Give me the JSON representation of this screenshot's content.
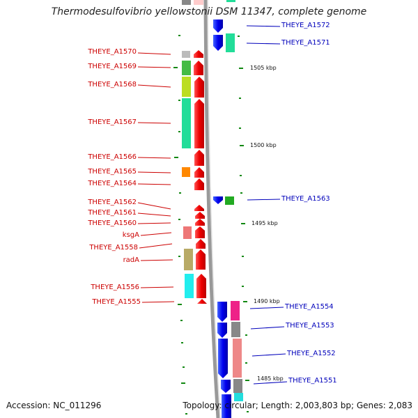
{
  "title": "Thermodesulfovibrio yellowstonii DSM 11347, complete genome",
  "footer": {
    "accession": "Accession: NC_011296",
    "topology": "Topology: circular; Length: 2,003,803 bp; Genes: 2,083"
  },
  "kbp_ticks": [
    "1505 kbp",
    "1500 kbp",
    "1495 kbp",
    "1490 kbp",
    "1485 kbp"
  ],
  "left_genes": [
    {
      "label": "THEYE_A1570"
    },
    {
      "label": "THEYE_A1569"
    },
    {
      "label": "THEYE_A1568"
    },
    {
      "label": "THEYE_A1567"
    },
    {
      "label": "THEYE_A1566"
    },
    {
      "label": "THEYE_A1565"
    },
    {
      "label": "THEYE_A1564"
    },
    {
      "label": "THEYE_A1562"
    },
    {
      "label": "THEYE_A1561"
    },
    {
      "label": "THEYE_A1560"
    },
    {
      "label": "ksgA"
    },
    {
      "label": "THEYE_A1558"
    },
    {
      "label": "radA"
    },
    {
      "label": "THEYE_A1556"
    },
    {
      "label": "THEYE_A1555"
    }
  ],
  "right_genes": [
    {
      "label": "THEYE_A1572"
    },
    {
      "label": "THEYE_A1571"
    },
    {
      "label": "THEYE_A1563"
    },
    {
      "label": "THEYE_A1554"
    },
    {
      "label": "THEYE_A1553"
    },
    {
      "label": "THEYE_A1552"
    },
    {
      "label": "THEYE_A1551"
    }
  ],
  "colors": {
    "forward_strand": "#ee0000",
    "reverse_strand": "#0000ee",
    "left_label": "#cc0000",
    "right_label": "#0000bb",
    "tick": "#118811",
    "backbone": "#999999"
  }
}
